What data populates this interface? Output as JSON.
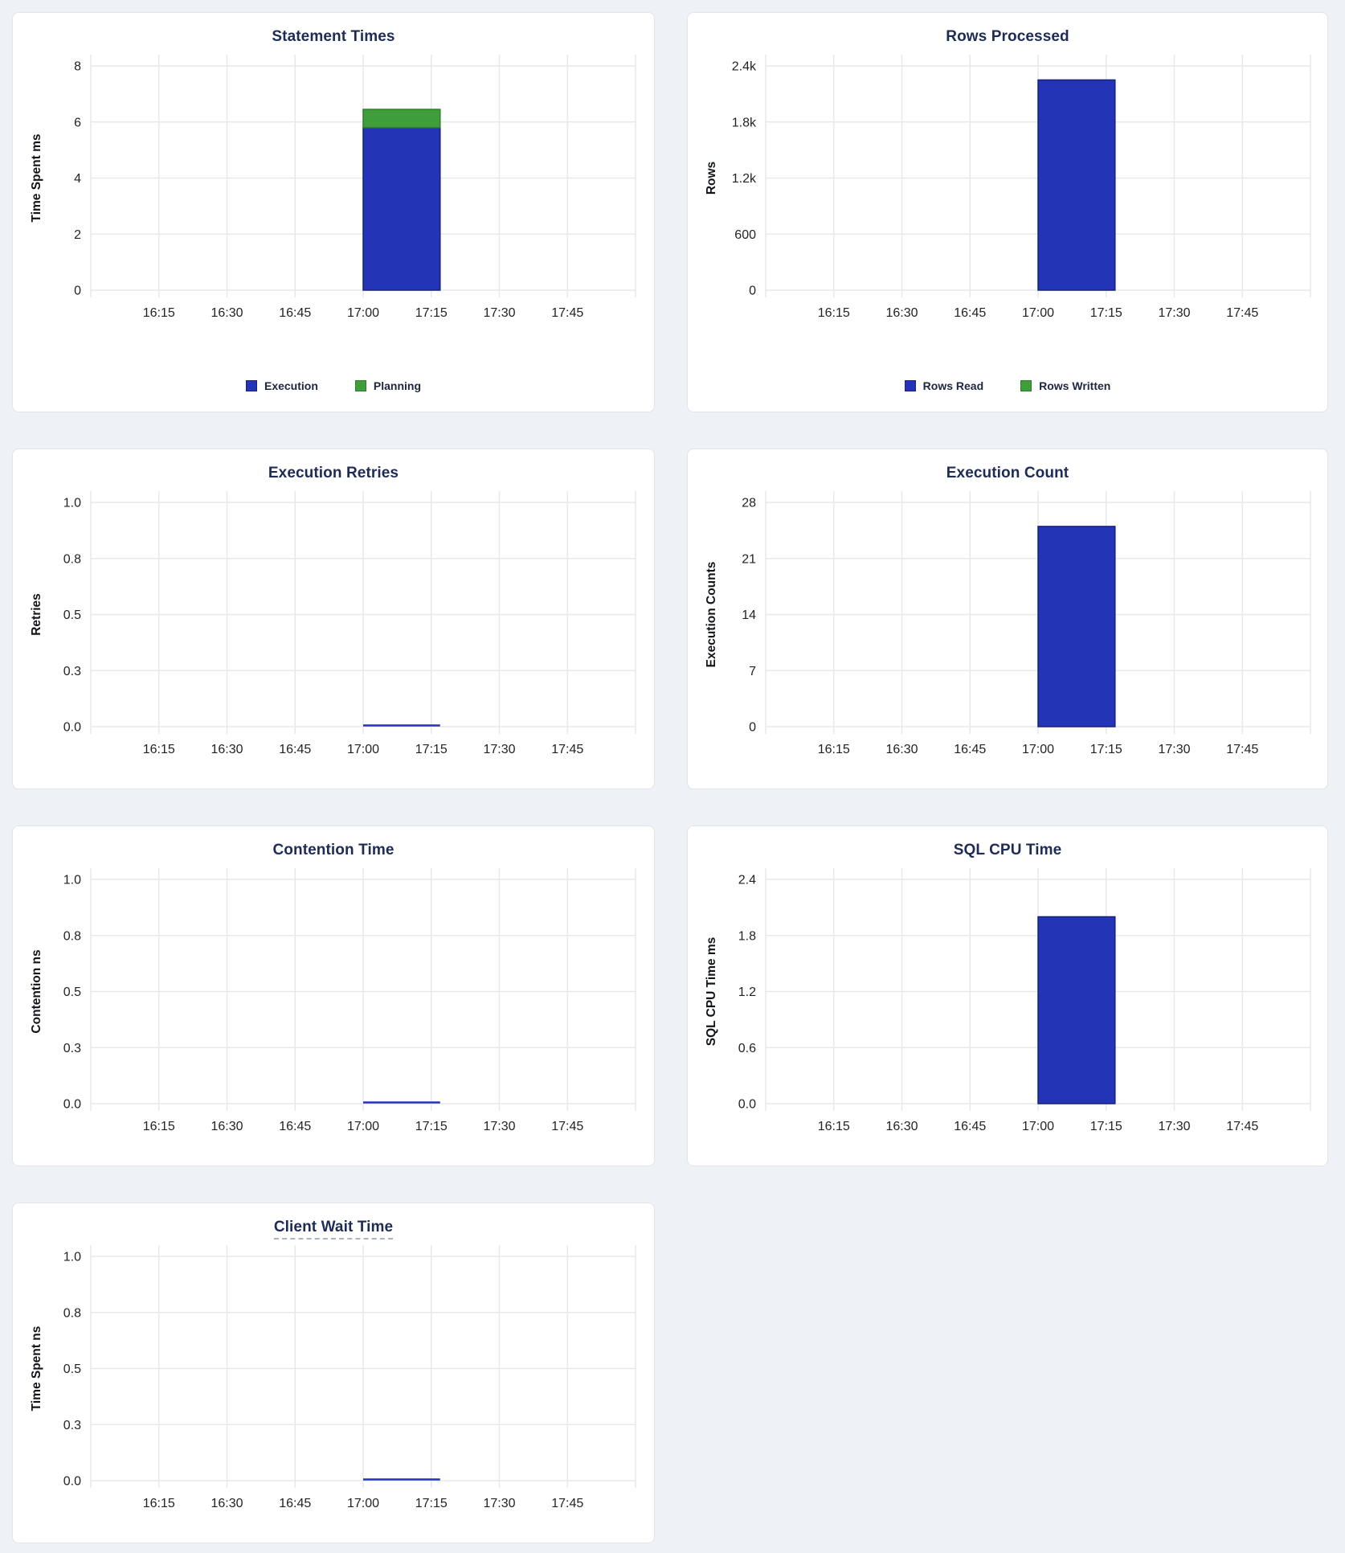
{
  "page": {
    "background": "#eef2f7"
  },
  "colors": {
    "card_background": "#ffffff",
    "card_border": "#e1e5ea",
    "grid_line": "#e7e9ed",
    "title_text": "#1e2c55",
    "tick_text": "#1f2125",
    "legend_text": "#1b2740",
    "bar_blue": "#2434b6",
    "bar_blue_border": "#18217e",
    "bar_green": "#3f9e3b",
    "bar_green_border": "#2b8226",
    "dashed_underline": "#aab4c1"
  },
  "x_axis": {
    "visible_range": "16:00 - 18:00",
    "tick_interval": "15m",
    "bar_bucket": {
      "start": "17:00",
      "end": "17:15"
    }
  },
  "chart_data": [
    {
      "type": "bar",
      "title": "Statement Times",
      "ylabel": "Time Spent ms",
      "x_tick_labels": [
        "16:15",
        "16:30",
        "16:45",
        "17:00",
        "17:15",
        "17:30",
        "17:45"
      ],
      "y_tick_labels": [
        "0",
        "2",
        "4",
        "6",
        "8"
      ],
      "ylim": [
        0,
        8
      ],
      "bar_bucket": [
        "17:00",
        "17:15"
      ],
      "stacked": true,
      "series": [
        {
          "name": "Execution",
          "color": "blue",
          "value": 5.8
        },
        {
          "name": "Planning",
          "color": "green",
          "value": 0.65
        }
      ],
      "legend": [
        "Execution",
        "Planning"
      ],
      "legend_position": "bottom-center",
      "grid": true
    },
    {
      "type": "bar",
      "title": "Rows Processed",
      "ylabel": "Rows",
      "x_tick_labels": [
        "16:15",
        "16:30",
        "16:45",
        "17:00",
        "17:15",
        "17:30",
        "17:45"
      ],
      "y_tick_labels": [
        "0",
        "600",
        "1.2k",
        "1.8k",
        "2.4k"
      ],
      "ylim": [
        0,
        2400
      ],
      "bar_bucket": [
        "17:00",
        "17:15"
      ],
      "stacked": true,
      "series": [
        {
          "name": "Rows Read",
          "color": "blue",
          "value": 2250
        },
        {
          "name": "Rows Written",
          "color": "green",
          "value": 0
        }
      ],
      "legend": [
        "Rows Read",
        "Rows Written"
      ],
      "legend_position": "bottom-center",
      "grid": true
    },
    {
      "type": "bar",
      "title": "Execution Retries",
      "ylabel": "Retries",
      "x_tick_labels": [
        "16:15",
        "16:30",
        "16:45",
        "17:00",
        "17:15",
        "17:30",
        "17:45"
      ],
      "y_tick_labels": [
        "0.0",
        "0.3",
        "0.5",
        "0.8",
        "1.0"
      ],
      "ylim": [
        0,
        1
      ],
      "bar_bucket": [
        "17:00",
        "17:15"
      ],
      "series": [
        {
          "name": "Retries",
          "color": "blue",
          "value": 0
        }
      ],
      "grid": true
    },
    {
      "type": "bar",
      "title": "Execution Count",
      "ylabel": "Execution Counts",
      "x_tick_labels": [
        "16:15",
        "16:30",
        "16:45",
        "17:00",
        "17:15",
        "17:30",
        "17:45"
      ],
      "y_tick_labels": [
        "0",
        "7",
        "14",
        "21",
        "28"
      ],
      "ylim": [
        0,
        28
      ],
      "bar_bucket": [
        "17:00",
        "17:15"
      ],
      "series": [
        {
          "name": "Execution Count",
          "color": "blue",
          "value": 25
        }
      ],
      "grid": true
    },
    {
      "type": "bar",
      "title": "Contention Time",
      "ylabel": "Contention ns",
      "x_tick_labels": [
        "16:15",
        "16:30",
        "16:45",
        "17:00",
        "17:15",
        "17:30",
        "17:45"
      ],
      "y_tick_labels": [
        "0.0",
        "0.3",
        "0.5",
        "0.8",
        "1.0"
      ],
      "ylim": [
        0,
        1
      ],
      "bar_bucket": [
        "17:00",
        "17:15"
      ],
      "series": [
        {
          "name": "Contention",
          "color": "blue",
          "value": 0
        }
      ],
      "grid": true
    },
    {
      "type": "bar",
      "title": "SQL CPU Time",
      "ylabel": "SQL CPU Time ms",
      "x_tick_labels": [
        "16:15",
        "16:30",
        "16:45",
        "17:00",
        "17:15",
        "17:30",
        "17:45"
      ],
      "y_tick_labels": [
        "0.0",
        "0.6",
        "1.2",
        "1.8",
        "2.4"
      ],
      "ylim": [
        0,
        2.4
      ],
      "bar_bucket": [
        "17:00",
        "17:15"
      ],
      "series": [
        {
          "name": "SQL CPU Time",
          "color": "blue",
          "value": 2.0
        }
      ],
      "grid": true
    },
    {
      "type": "bar",
      "title": "Client Wait Time",
      "ylabel": "Time Spent ns",
      "x_tick_labels": [
        "16:15",
        "16:30",
        "16:45",
        "17:00",
        "17:15",
        "17:30",
        "17:45"
      ],
      "y_tick_labels": [
        "0.0",
        "0.3",
        "0.5",
        "0.8",
        "1.0"
      ],
      "ylim": [
        0,
        1
      ],
      "bar_bucket": [
        "17:00",
        "17:15"
      ],
      "title_dashed_underline": true,
      "series": [
        {
          "name": "Client Wait",
          "color": "blue",
          "value": 0
        }
      ],
      "grid": true
    }
  ]
}
